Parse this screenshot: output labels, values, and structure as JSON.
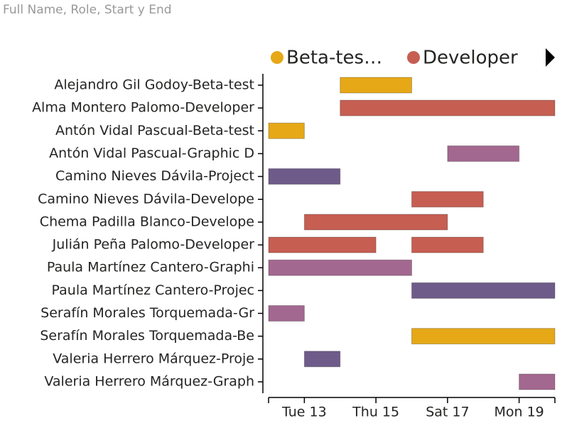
{
  "chart_data": {
    "type": "gantt",
    "title": "Full Name, Role, Start y End",
    "legend": [
      {
        "name": "Beta-tes…",
        "color": "#e6a817"
      },
      {
        "name": "Developer",
        "color": "#c65e52"
      }
    ],
    "rows": [
      {
        "label": "Alejandro Gil Godoy-Beta-test",
        "color": "#e6a817",
        "bars": [
          {
            "start": 14,
            "end": 16
          }
        ]
      },
      {
        "label": "Alma Montero Palomo-Developer",
        "color": "#c65e52",
        "bars": [
          {
            "start": 14,
            "end": 20
          }
        ]
      },
      {
        "label": "Antón Vidal Pascual-Beta-test",
        "color": "#e6a817",
        "bars": [
          {
            "start": 12,
            "end": 13
          }
        ]
      },
      {
        "label": "Antón Vidal Pascual-Graphic D",
        "color": "#a3688f",
        "bars": [
          {
            "start": 17,
            "end": 19
          }
        ]
      },
      {
        "label": "Camino Nieves Dávila-Project",
        "color": "#6e5b8a",
        "bars": [
          {
            "start": 12,
            "end": 14
          }
        ]
      },
      {
        "label": "Camino Nieves Dávila-Develope",
        "color": "#c65e52",
        "bars": [
          {
            "start": 16,
            "end": 18
          }
        ]
      },
      {
        "label": "Chema Padilla Blanco-Develope",
        "color": "#c65e52",
        "bars": [
          {
            "start": 13,
            "end": 17
          }
        ]
      },
      {
        "label": "Julián Peña Palomo-Developer",
        "color": "#c65e52",
        "bars": [
          {
            "start": 12,
            "end": 15
          },
          {
            "start": 16,
            "end": 18
          }
        ]
      },
      {
        "label": "Paula Martínez Cantero-Graphi",
        "color": "#a3688f",
        "bars": [
          {
            "start": 12,
            "end": 16
          }
        ]
      },
      {
        "label": "Paula Martínez Cantero-Projec",
        "color": "#6e5b8a",
        "bars": [
          {
            "start": 16,
            "end": 20
          }
        ]
      },
      {
        "label": "Serafín Morales Torquemada-Gr",
        "color": "#a3688f",
        "bars": [
          {
            "start": 12,
            "end": 13
          }
        ]
      },
      {
        "label": "Serafín Morales Torquemada-Be",
        "color": "#e6a817",
        "bars": [
          {
            "start": 16,
            "end": 20
          }
        ]
      },
      {
        "label": "Valeria Herrero Márquez-Proje",
        "color": "#6e5b8a",
        "bars": [
          {
            "start": 13,
            "end": 14
          }
        ]
      },
      {
        "label": "Valeria Herrero Márquez-Graph",
        "color": "#a3688f",
        "bars": [
          {
            "start": 19,
            "end": 20
          }
        ]
      }
    ],
    "xlim": [
      12,
      20
    ],
    "xticks": [
      {
        "value": 13,
        "label": "Tue 13"
      },
      {
        "value": 15,
        "label": "Thu 15"
      },
      {
        "value": 17,
        "label": "Sat 17"
      },
      {
        "value": 19,
        "label": "Mon 19"
      }
    ]
  }
}
